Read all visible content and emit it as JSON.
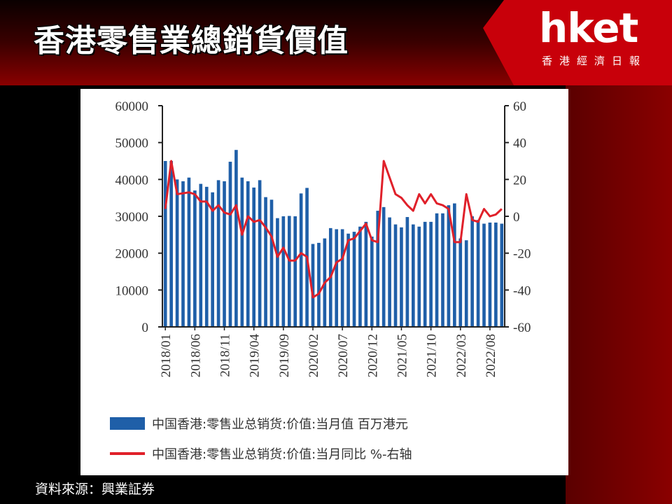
{
  "header": {
    "title": "香港零售業總銷貨價值",
    "logo_word": "hket",
    "logo_sub": "香港經濟日報"
  },
  "source": "資料來源：興業証券",
  "colors": {
    "bar": "#1f5fa8",
    "line": "#e0202a",
    "axis": "#222222"
  },
  "chart_data": {
    "type": "bar",
    "title": "",
    "xlabel": "",
    "ylabel": "",
    "ylim": [
      0,
      60000
    ],
    "y2lim": [
      -60,
      60
    ],
    "y_ticks": [
      0,
      10000,
      20000,
      30000,
      40000,
      50000,
      60000
    ],
    "y2_ticks": [
      -60,
      -40,
      -20,
      0,
      20,
      40,
      60
    ],
    "x_tick_labels": [
      "2018/01",
      "2018/06",
      "2018/11",
      "2019/04",
      "2019/09",
      "2020/02",
      "2020/07",
      "2020/12",
      "2021/05",
      "2021/10",
      "2022/03",
      "2022/08"
    ],
    "categories": [
      "2018/01",
      "2018/02",
      "2018/03",
      "2018/04",
      "2018/05",
      "2018/06",
      "2018/07",
      "2018/08",
      "2018/09",
      "2018/10",
      "2018/11",
      "2018/12",
      "2019/01",
      "2019/02",
      "2019/03",
      "2019/04",
      "2019/05",
      "2019/06",
      "2019/07",
      "2019/08",
      "2019/09",
      "2019/10",
      "2019/11",
      "2019/12",
      "2020/01",
      "2020/02",
      "2020/03",
      "2020/04",
      "2020/05",
      "2020/06",
      "2020/07",
      "2020/08",
      "2020/09",
      "2020/10",
      "2020/11",
      "2020/12",
      "2021/01",
      "2021/02",
      "2021/03",
      "2021/04",
      "2021/05",
      "2021/06",
      "2021/07",
      "2021/08",
      "2021/09",
      "2021/10",
      "2021/11",
      "2021/12",
      "2022/01",
      "2022/02",
      "2022/03",
      "2022/04",
      "2022/05",
      "2022/06",
      "2022/07",
      "2022/08",
      "2022/09",
      "2022/10"
    ],
    "series": [
      {
        "name": "中国香港:零售业总销货:价值:当月值 百万港元",
        "type": "bar",
        "axis": "left",
        "values": [
          45000,
          45000,
          40000,
          39500,
          40500,
          37000,
          38800,
          38000,
          36500,
          39800,
          39500,
          44800,
          48000,
          40500,
          39500,
          37800,
          39800,
          35200,
          34500,
          29500,
          30000,
          30100,
          30000,
          36200,
          37700,
          22500,
          22800,
          24000,
          26800,
          26500,
          26500,
          25300,
          25800,
          27200,
          28500,
          24500,
          31500,
          32500,
          29700,
          27800,
          27000,
          29800,
          27800,
          27200,
          28500,
          28500,
          30800,
          30800,
          33000,
          33500,
          24000,
          23500,
          30000,
          29000,
          28000,
          28300,
          28300,
          28000
        ]
      },
      {
        "name": "中国香港:零售业总销货:价值:当月同比 %-右轴",
        "type": "line",
        "axis": "right",
        "values": [
          4,
          30,
          12,
          12.5,
          13,
          12,
          8,
          8,
          3,
          6,
          2,
          1,
          6,
          -10,
          0,
          -3,
          -2,
          -6,
          -11,
          -22,
          -17,
          -24,
          -24,
          -20,
          -22,
          -44,
          -42,
          -36,
          -33,
          -25,
          -23,
          -13,
          -12,
          -8,
          -4,
          -13,
          -14,
          30,
          21,
          12,
          10,
          6,
          3,
          12,
          7,
          12,
          7,
          6,
          4,
          -14,
          -14,
          12,
          -2,
          -3,
          4,
          0,
          1,
          4
        ]
      }
    ],
    "legend_position": "bottom"
  }
}
